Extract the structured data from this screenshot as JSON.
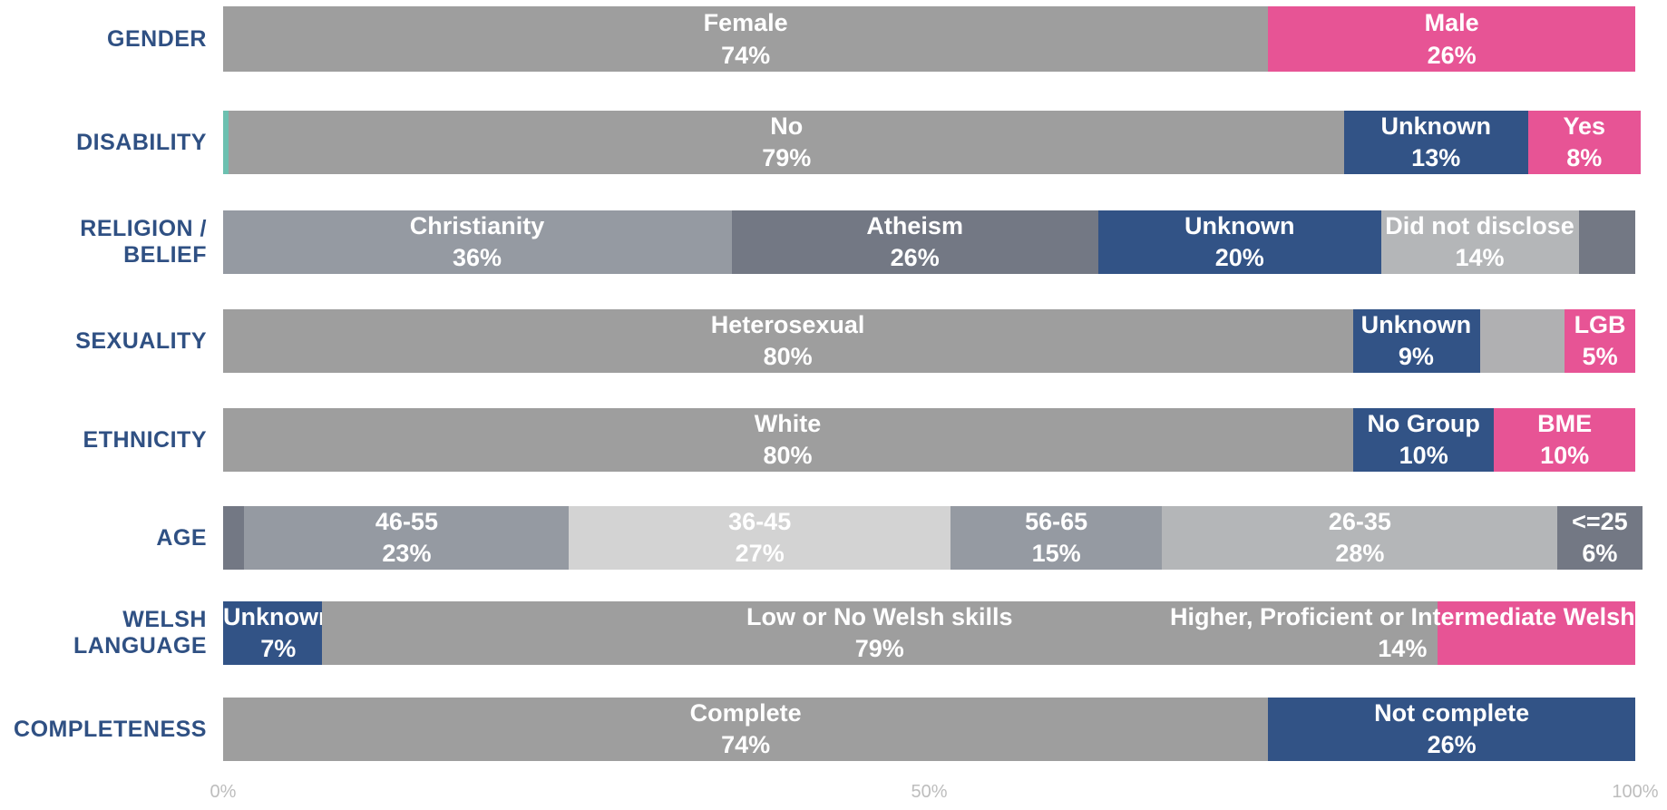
{
  "chart_data": {
    "type": "stacked-bar-100",
    "categories": [
      "GENDER",
      "DISABILITY",
      "RELIGION / BELIEF",
      "SEXUALITY",
      "ETHNICITY",
      "AGE",
      "WELSH LANGUAGE",
      "COMPLETENESS"
    ],
    "rows": [
      {
        "names": [
          "Female",
          "Male"
        ],
        "values": [
          74,
          26
        ],
        "value_labels": [
          "74%",
          "26%"
        ],
        "colors": [
          "#9e9e9e",
          "#e75495"
        ]
      },
      {
        "names": [
          null,
          "No",
          "Unknown",
          "Yes"
        ],
        "values": [
          0.4,
          79,
          13,
          8
        ],
        "value_labels": [
          null,
          "79%",
          "13%",
          "8%"
        ],
        "colors": [
          "#6cc0b0",
          "#9e9e9e",
          "#325386",
          "#e75495"
        ]
      },
      {
        "names": [
          "Christianity",
          "Atheism",
          "Unknown",
          "Did not disclose",
          null
        ],
        "values": [
          36,
          26,
          20,
          14,
          4
        ],
        "value_labels": [
          "36%",
          "26%",
          "20%",
          "14%",
          null
        ],
        "colors": [
          "#959aa2",
          "#737884",
          "#325386",
          "#b4b6b8",
          "#737884"
        ]
      },
      {
        "names": [
          "Heterosexual",
          "Unknown",
          null,
          "LGB"
        ],
        "values": [
          80,
          9,
          6,
          5
        ],
        "value_labels": [
          "80%",
          "9%",
          null,
          "5%"
        ],
        "colors": [
          "#9e9e9e",
          "#325386",
          "#b0b0b2",
          "#e75495"
        ]
      },
      {
        "names": [
          "White",
          "No Group",
          "BME"
        ],
        "values": [
          80,
          10,
          10
        ],
        "value_labels": [
          "80%",
          "10%",
          "10%"
        ],
        "colors": [
          "#9e9e9e",
          "#325386",
          "#e75495"
        ]
      },
      {
        "names": [
          null,
          "46-55",
          "36-45",
          "56-65",
          "26-35",
          "<=25"
        ],
        "values": [
          1.5,
          23,
          27,
          15,
          28,
          6
        ],
        "value_labels": [
          null,
          "23%",
          "27%",
          "15%",
          "28%",
          "6%"
        ],
        "colors": [
          "#737884",
          "#959aa2",
          "#d3d3d3",
          "#959aa2",
          "#b4b6b8",
          "#737884"
        ]
      },
      {
        "names": [
          "Unknown",
          "Low or No Welsh skills",
          "Higher, Proficient or Intermediate Welsh"
        ],
        "values": [
          7,
          79,
          14
        ],
        "value_labels": [
          "7%",
          "79%",
          "14%"
        ],
        "colors": [
          "#325386",
          "#9e9e9e",
          "#e75495"
        ]
      },
      {
        "names": [
          "Complete",
          "Not complete"
        ],
        "values": [
          74,
          26
        ],
        "value_labels": [
          "74%",
          "26%"
        ],
        "colors": [
          "#9e9e9e",
          "#325386"
        ]
      }
    ],
    "xlim": [
      0,
      100
    ],
    "xticks": [
      {
        "value": 0,
        "label": "0%"
      },
      {
        "value": 50,
        "label": "50%"
      },
      {
        "value": 100,
        "label": "100%"
      }
    ]
  }
}
